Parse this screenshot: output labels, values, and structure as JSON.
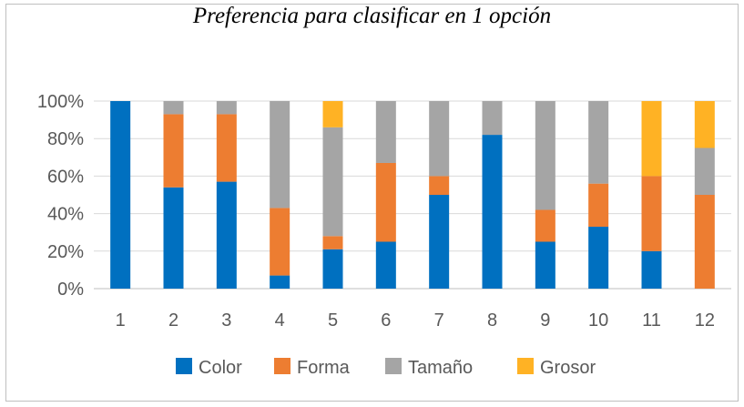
{
  "chart_data": {
    "type": "bar",
    "stacked": "percent",
    "title": "Preferencia para clasificar en 1 opción",
    "xlabel": "",
    "ylabel": "",
    "categories": [
      "1",
      "2",
      "3",
      "4",
      "5",
      "6",
      "7",
      "8",
      "9",
      "10",
      "11",
      "12"
    ],
    "ylim": [
      0,
      100
    ],
    "yticks": [
      "0%",
      "20%",
      "40%",
      "60%",
      "80%",
      "100%"
    ],
    "grid": true,
    "legend_position": "bottom",
    "series": [
      {
        "name": "Color",
        "color": "#0070C0",
        "values": [
          100,
          54,
          57,
          7,
          21,
          25,
          50,
          82,
          25,
          33,
          20,
          0
        ]
      },
      {
        "name": "Forma",
        "color": "#ED7D31",
        "values": [
          0,
          39,
          36,
          36,
          7,
          42,
          10,
          0,
          17,
          23,
          40,
          50
        ]
      },
      {
        "name": "Tamaño",
        "color": "#A5A5A5",
        "values": [
          0,
          7,
          7,
          57,
          58,
          33,
          40,
          18,
          58,
          44,
          0,
          25
        ]
      },
      {
        "name": "Grosor",
        "color": "#FFB224",
        "values": [
          0,
          0,
          0,
          0,
          14,
          0,
          0,
          0,
          0,
          0,
          40,
          25
        ]
      }
    ]
  }
}
